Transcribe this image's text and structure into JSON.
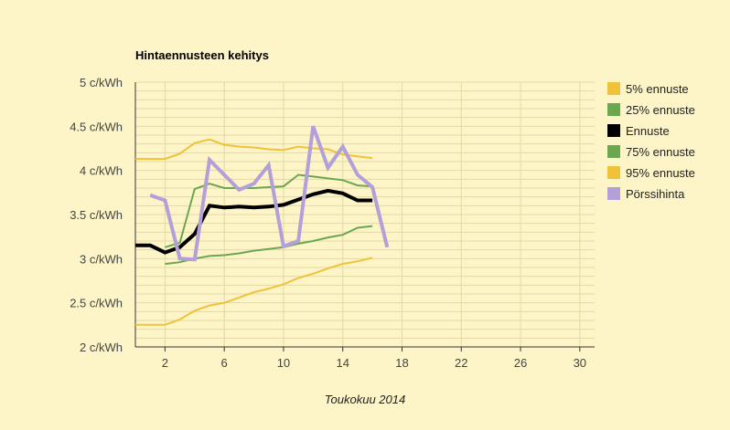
{
  "chart_data": {
    "type": "line",
    "title": "Hintaennusteen kehitys",
    "xlabel": "Toukokuu 2014",
    "ylabel": "",
    "xlim": [
      0,
      31
    ],
    "ylim": [
      2,
      5
    ],
    "x_ticks": [
      2,
      6,
      10,
      14,
      18,
      22,
      26,
      30
    ],
    "y_ticks": [
      {
        "value": 2,
        "label": "2 c/kWh"
      },
      {
        "value": 2.5,
        "label": "2.5 c/kWh"
      },
      {
        "value": 3,
        "label": "3 c/kWh"
      },
      {
        "value": 3.5,
        "label": "3.5 c/kWh"
      },
      {
        "value": 4,
        "label": "4 c/kWh"
      },
      {
        "value": 4.5,
        "label": "4.5 c/kWh"
      },
      {
        "value": 5,
        "label": "5 c/kWh"
      }
    ],
    "grid": true,
    "legend_position": "right",
    "series": [
      {
        "name": "5% ennuste",
        "color": "#f0c23a",
        "width": 2,
        "points": [
          [
            0,
            2.25
          ],
          [
            1,
            2.25
          ],
          [
            2,
            2.25
          ],
          [
            3,
            2.31
          ],
          [
            4,
            2.41
          ],
          [
            5,
            2.47
          ],
          [
            6,
            2.5
          ],
          [
            7,
            2.56
          ],
          [
            8,
            2.62
          ],
          [
            9,
            2.66
          ],
          [
            10,
            2.71
          ],
          [
            11,
            2.78
          ],
          [
            12,
            2.83
          ],
          [
            13,
            2.89
          ],
          [
            14,
            2.94
          ],
          [
            15,
            2.97
          ],
          [
            16,
            3.01
          ]
        ]
      },
      {
        "name": "25% ennuste",
        "color": "#6aa84f",
        "width": 2,
        "points": [
          [
            2,
            3.13
          ],
          [
            3,
            3.18
          ],
          [
            4,
            3.79
          ],
          [
            5,
            3.85
          ],
          [
            6,
            3.8
          ],
          [
            7,
            3.8
          ],
          [
            8,
            3.8
          ],
          [
            9,
            3.81
          ],
          [
            10,
            3.82
          ],
          [
            11,
            3.95
          ],
          [
            12,
            3.93
          ],
          [
            13,
            3.91
          ],
          [
            14,
            3.89
          ],
          [
            15,
            3.83
          ],
          [
            16,
            3.82
          ]
        ]
      },
      {
        "name": "Ennuste",
        "color": "#000000",
        "width": 4,
        "points": [
          [
            0,
            3.15
          ],
          [
            1,
            3.15
          ],
          [
            2,
            3.07
          ],
          [
            3,
            3.13
          ],
          [
            4,
            3.28
          ],
          [
            5,
            3.6
          ],
          [
            6,
            3.58
          ],
          [
            7,
            3.59
          ],
          [
            8,
            3.58
          ],
          [
            9,
            3.59
          ],
          [
            10,
            3.61
          ],
          [
            11,
            3.67
          ],
          [
            12,
            3.73
          ],
          [
            13,
            3.77
          ],
          [
            14,
            3.74
          ],
          [
            15,
            3.66
          ],
          [
            16,
            3.66
          ]
        ]
      },
      {
        "name": "75% ennuste",
        "color": "#6aa84f",
        "width": 2,
        "points": [
          [
            2,
            2.94
          ],
          [
            3,
            2.96
          ],
          [
            4,
            3.0
          ],
          [
            5,
            3.03
          ],
          [
            6,
            3.04
          ],
          [
            7,
            3.06
          ],
          [
            8,
            3.09
          ],
          [
            9,
            3.11
          ],
          [
            10,
            3.13
          ],
          [
            11,
            3.17
          ],
          [
            12,
            3.2
          ],
          [
            13,
            3.24
          ],
          [
            14,
            3.27
          ],
          [
            15,
            3.35
          ],
          [
            16,
            3.37
          ]
        ]
      },
      {
        "name": "95% ennuste",
        "color": "#f0c23a",
        "width": 2,
        "points": [
          [
            0,
            4.13
          ],
          [
            1,
            4.13
          ],
          [
            2,
            4.13
          ],
          [
            3,
            4.19
          ],
          [
            4,
            4.31
          ],
          [
            5,
            4.35
          ],
          [
            6,
            4.29
          ],
          [
            7,
            4.27
          ],
          [
            8,
            4.26
          ],
          [
            9,
            4.24
          ],
          [
            10,
            4.23
          ],
          [
            11,
            4.27
          ],
          [
            12,
            4.25
          ],
          [
            13,
            4.24
          ],
          [
            14,
            4.18
          ],
          [
            15,
            4.16
          ],
          [
            16,
            4.14
          ]
        ]
      },
      {
        "name": "Pörssihinta",
        "color": "#b3a0d9",
        "width": 4,
        "points": [
          [
            1,
            3.72
          ],
          [
            2,
            3.66
          ],
          [
            3,
            3.0
          ],
          [
            4,
            2.99
          ],
          [
            5,
            4.12
          ],
          [
            6,
            3.95
          ],
          [
            7,
            3.78
          ],
          [
            8,
            3.85
          ],
          [
            9,
            4.06
          ],
          [
            10,
            3.14
          ],
          [
            11,
            3.2
          ],
          [
            12,
            4.5
          ],
          [
            13,
            4.03
          ],
          [
            14,
            4.27
          ],
          [
            15,
            3.95
          ],
          [
            16,
            3.81
          ],
          [
            17,
            3.13
          ]
        ]
      }
    ]
  }
}
